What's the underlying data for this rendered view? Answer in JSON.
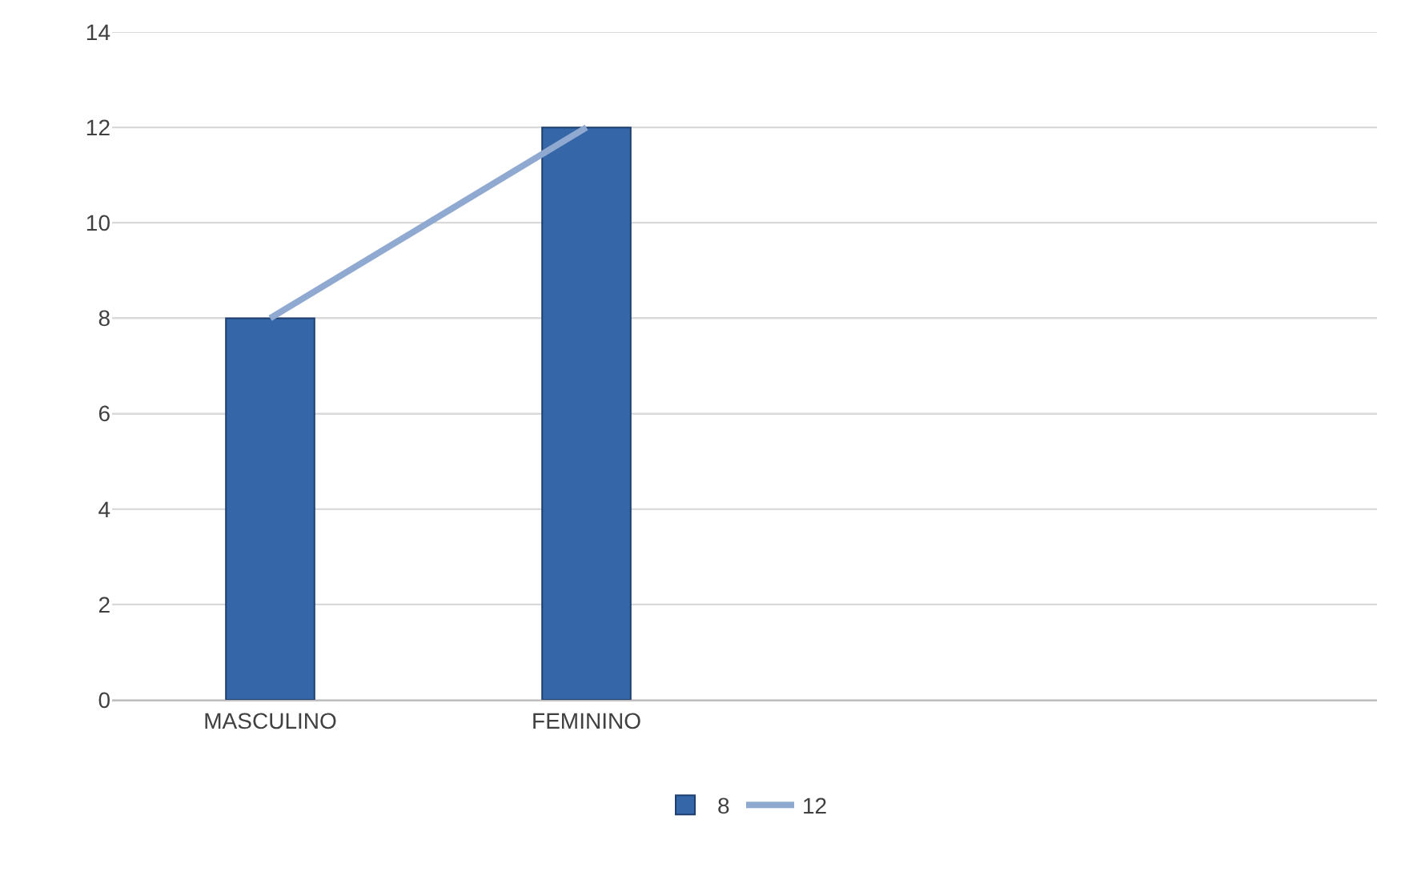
{
  "chart_data": {
    "type": "bar",
    "categories": [
      "MASCULINO",
      "FEMININO",
      null,
      null
    ],
    "series": [
      {
        "name": "8",
        "color": "#3566a8",
        "values": [
          8,
          12,
          null,
          null
        ]
      },
      {
        "name": "12",
        "type": "line",
        "color": "#8fa9d0",
        "values": [
          8,
          12,
          null,
          null
        ]
      }
    ],
    "ylim": [
      0,
      14
    ],
    "yticks": [
      0,
      2,
      4,
      6,
      8,
      10,
      12,
      14
    ],
    "grid": "y",
    "legend": "bottom",
    "marker": "none",
    "line_style": "solid"
  }
}
